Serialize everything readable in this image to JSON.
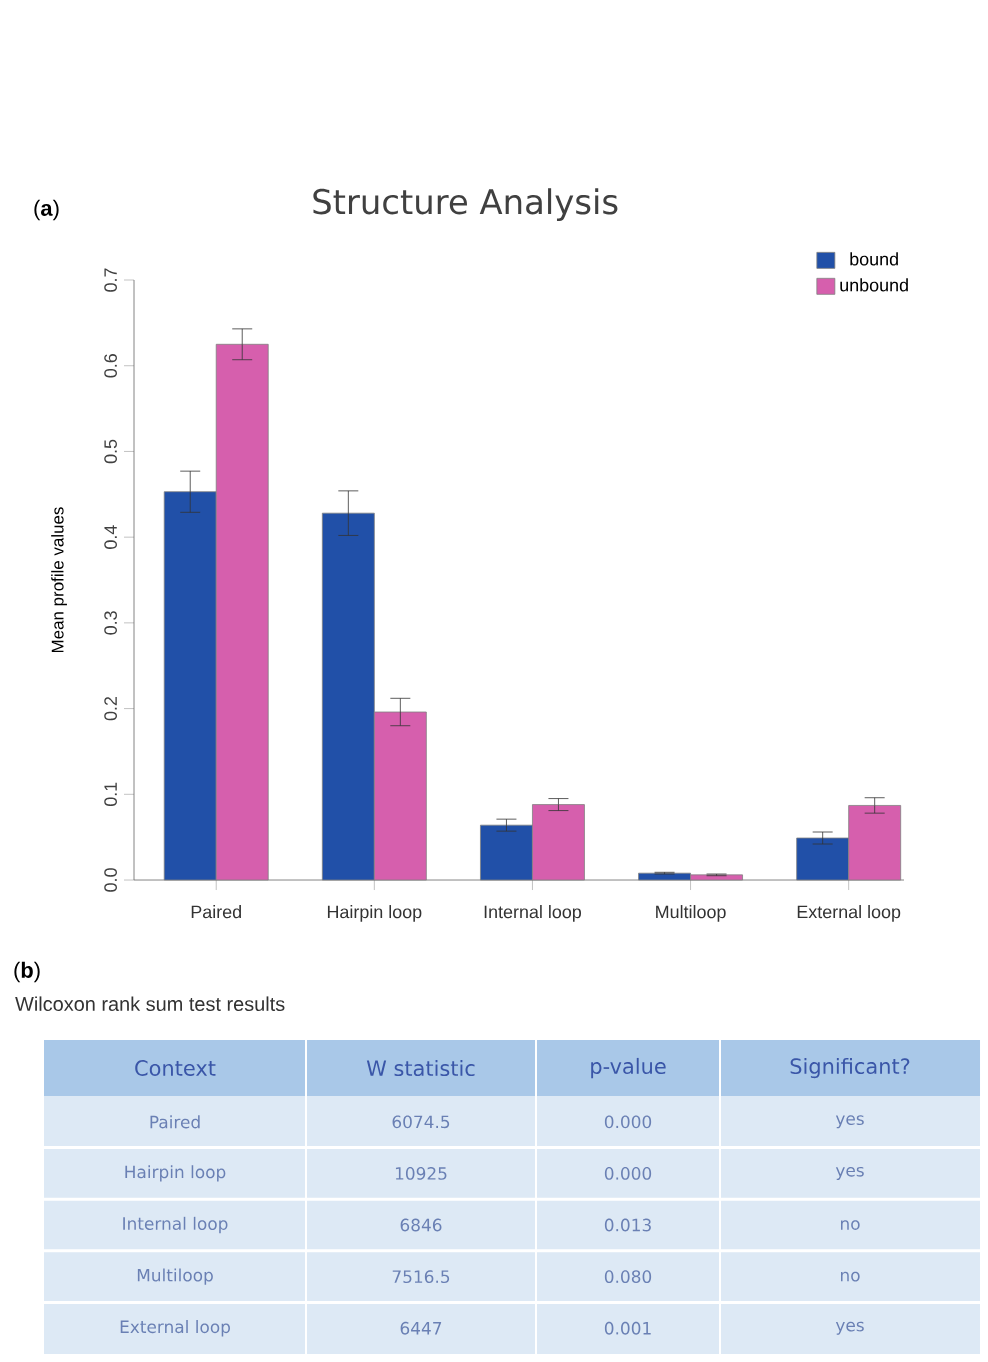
{
  "chart_data": [
    {
      "type": "bar",
      "title": "Structure Analysis",
      "ylabel": "Mean profile values",
      "categories": [
        "Paired",
        "Hairpin loop",
        "Internal loop",
        "Multiloop",
        "External loop"
      ],
      "series": [
        {
          "name": "bound",
          "color": "#2150a8",
          "values": [
            0.453,
            0.428,
            0.064,
            0.008,
            0.049
          ],
          "errors": [
            0.024,
            0.026,
            0.007,
            0.001,
            0.007
          ]
        },
        {
          "name": "unbound",
          "color": "#d65fad",
          "values": [
            0.625,
            0.196,
            0.088,
            0.006,
            0.087
          ],
          "errors": [
            0.018,
            0.016,
            0.007,
            0.001,
            0.009
          ]
        }
      ],
      "ylim": [
        0,
        0.7
      ],
      "yticks": [
        {
          "value": 0,
          "label": "0.0"
        },
        0.1,
        0.2,
        0.3,
        0.4,
        0.5,
        0.6,
        0.7
      ],
      "legend": "top right",
      "grid": false,
      "annotations": [
        "(**a**)"
      ]
    },
    {
      "type": "other",
      "title": "Wilcoxon rank sum test results",
      "categories": [
        "Context",
        "W statistic",
        "p-value",
        "Significant?"
      ],
      "annotations": [
        "(**b**)",
        "Paired",
        "6074.5",
        "0.000",
        "yes",
        "Hairpin loop",
        "10925",
        "0.000",
        "yes",
        "Internal loop",
        "6846",
        "0.013",
        "no",
        "Multiloop",
        "7516.5",
        "0.080",
        "no",
        "External loop",
        "6447",
        "0.001",
        "yes"
      ]
    }
  ]
}
